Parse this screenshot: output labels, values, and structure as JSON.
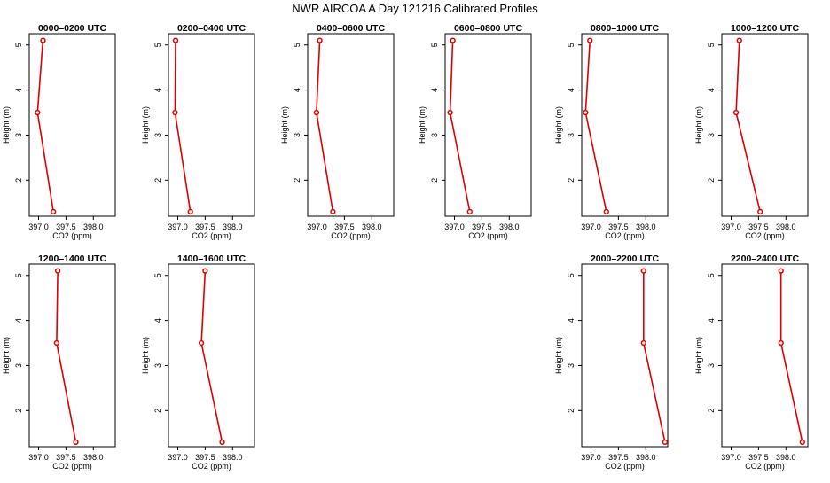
{
  "page_title": "NWR AIRCOA A  Day 121216  Calibrated Profiles",
  "colors": {
    "series": "#dd0000",
    "axis": "#000000"
  },
  "chart_data": [
    {
      "type": "line",
      "title": "0000–0200 UTC",
      "xlabel": "CO2 (ppm)",
      "ylabel": "Height (m)",
      "xticks": [
        "397.0",
        "397.5",
        "398.0"
      ],
      "yticks": [
        "2",
        "3",
        "4",
        "5"
      ],
      "xlim": [
        396.83,
        398.4
      ],
      "ylim": [
        1.2,
        5.25
      ],
      "points": [
        {
          "co2": 397.08,
          "height": 5.1
        },
        {
          "co2": 396.98,
          "height": 3.5
        },
        {
          "co2": 397.27,
          "height": 1.3
        }
      ]
    },
    {
      "type": "line",
      "title": "0200–0400 UTC",
      "xlabel": "CO2 (ppm)",
      "ylabel": "Height (m)",
      "xticks": [
        "397.0",
        "397.5",
        "398.0"
      ],
      "yticks": [
        "2",
        "3",
        "4",
        "5"
      ],
      "xlim": [
        396.83,
        398.4
      ],
      "ylim": [
        1.2,
        5.25
      ],
      "points": [
        {
          "co2": 396.96,
          "height": 5.1
        },
        {
          "co2": 396.95,
          "height": 3.5
        },
        {
          "co2": 397.23,
          "height": 1.3
        }
      ]
    },
    {
      "type": "line",
      "title": "0400–0600 UTC",
      "xlabel": "CO2 (ppm)",
      "ylabel": "Height (m)",
      "xticks": [
        "397.0",
        "397.5",
        "398.0"
      ],
      "yticks": [
        "2",
        "3",
        "4",
        "5"
      ],
      "xlim": [
        396.83,
        398.4
      ],
      "ylim": [
        1.2,
        5.25
      ],
      "points": [
        {
          "co2": 397.05,
          "height": 5.1
        },
        {
          "co2": 396.99,
          "height": 3.5
        },
        {
          "co2": 397.29,
          "height": 1.3
        }
      ]
    },
    {
      "type": "line",
      "title": "0600–0800 UTC",
      "xlabel": "CO2 (ppm)",
      "ylabel": "Height (m)",
      "xticks": [
        "397.0",
        "397.5",
        "398.0"
      ],
      "yticks": [
        "2",
        "3",
        "4",
        "5"
      ],
      "xlim": [
        396.83,
        398.4
      ],
      "ylim": [
        1.2,
        5.25
      ],
      "points": [
        {
          "co2": 396.97,
          "height": 5.1
        },
        {
          "co2": 396.92,
          "height": 3.5
        },
        {
          "co2": 397.28,
          "height": 1.3
        }
      ]
    },
    {
      "type": "line",
      "title": "0800–1000 UTC",
      "xlabel": "CO2 (ppm)",
      "ylabel": "Height (m)",
      "xticks": [
        "397.0",
        "397.5",
        "398.0"
      ],
      "yticks": [
        "2",
        "3",
        "4",
        "5"
      ],
      "xlim": [
        396.83,
        398.4
      ],
      "ylim": [
        1.2,
        5.25
      ],
      "points": [
        {
          "co2": 396.98,
          "height": 5.1
        },
        {
          "co2": 396.9,
          "height": 3.5
        },
        {
          "co2": 397.28,
          "height": 1.3
        }
      ]
    },
    {
      "type": "line",
      "title": "1000–1200 UTC",
      "xlabel": "CO2 (ppm)",
      "ylabel": "Height (m)",
      "xticks": [
        "397.0",
        "397.5",
        "398.0"
      ],
      "yticks": [
        "2",
        "3",
        "4",
        "5"
      ],
      "xlim": [
        396.83,
        398.4
      ],
      "ylim": [
        1.2,
        5.25
      ],
      "points": [
        {
          "co2": 397.15,
          "height": 5.1
        },
        {
          "co2": 397.09,
          "height": 3.5
        },
        {
          "co2": 397.53,
          "height": 1.3
        }
      ]
    },
    {
      "type": "line",
      "title": "1200–1400 UTC",
      "xlabel": "CO2 (ppm)",
      "ylabel": "Height (m)",
      "xticks": [
        "397.0",
        "397.5",
        "398.0"
      ],
      "yticks": [
        "2",
        "3",
        "4",
        "5"
      ],
      "xlim": [
        396.83,
        398.4
      ],
      "ylim": [
        1.2,
        5.25
      ],
      "points": [
        {
          "co2": 397.35,
          "height": 5.1
        },
        {
          "co2": 397.33,
          "height": 3.5
        },
        {
          "co2": 397.68,
          "height": 1.3
        }
      ]
    },
    {
      "type": "line",
      "title": "1400–1600 UTC",
      "xlabel": "CO2 (ppm)",
      "ylabel": "Height (m)",
      "xticks": [
        "397.0",
        "397.5",
        "398.0"
      ],
      "yticks": [
        "2",
        "3",
        "4",
        "5"
      ],
      "xlim": [
        396.83,
        398.4
      ],
      "ylim": [
        1.2,
        5.25
      ],
      "points": [
        {
          "co2": 397.5,
          "height": 5.1
        },
        {
          "co2": 397.43,
          "height": 3.5
        },
        {
          "co2": 397.81,
          "height": 1.3
        }
      ]
    },
    {
      "type": "line",
      "title": "2000–2200 UTC",
      "xlabel": "CO2 (ppm)",
      "ylabel": "Height (m)",
      "xticks": [
        "397.0",
        "397.5",
        "398.0"
      ],
      "yticks": [
        "2",
        "3",
        "4",
        "5"
      ],
      "xlim": [
        396.83,
        398.4
      ],
      "ylim": [
        1.2,
        5.25
      ],
      "points": [
        {
          "co2": 397.96,
          "height": 5.1
        },
        {
          "co2": 397.96,
          "height": 3.5
        },
        {
          "co2": 398.35,
          "height": 1.3
        }
      ]
    },
    {
      "type": "line",
      "title": "2200–2400 UTC",
      "xlabel": "CO2 (ppm)",
      "ylabel": "Height (m)",
      "xticks": [
        "397.0",
        "397.5",
        "398.0"
      ],
      "yticks": [
        "2",
        "3",
        "4",
        "5"
      ],
      "xlim": [
        396.83,
        398.4
      ],
      "ylim": [
        1.2,
        5.25
      ],
      "points": [
        {
          "co2": 397.91,
          "height": 5.1
        },
        {
          "co2": 397.91,
          "height": 3.5
        },
        {
          "co2": 398.3,
          "height": 1.3
        }
      ]
    }
  ]
}
